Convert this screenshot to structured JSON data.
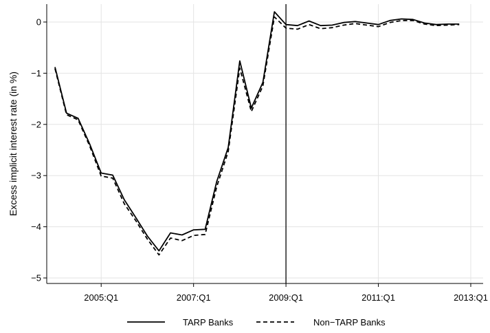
{
  "chart_data": {
    "type": "line",
    "ylabel": "Excess implicit interest rate (in %)",
    "xlabel": "",
    "ylim": [
      -5.2,
      0.35
    ],
    "xlim": [
      "2004:Q1",
      "2013:Q1"
    ],
    "yticks": [
      "0",
      "−1",
      "−2",
      "−3",
      "−4",
      "−5"
    ],
    "xticks": [
      "2005:Q1",
      "2007:Q1",
      "2009:Q1",
      "2011:Q1",
      "2013:Q1"
    ],
    "grid": true,
    "vertical_line": "2009:Q1",
    "legend_position": "bottom",
    "x": [
      "2004:Q1",
      "2004:Q2",
      "2004:Q3",
      "2004:Q4",
      "2005:Q1",
      "2005:Q2",
      "2005:Q3",
      "2005:Q4",
      "2006:Q1",
      "2006:Q2",
      "2006:Q3",
      "2006:Q4",
      "2007:Q1",
      "2007:Q2",
      "2007:Q3",
      "2007:Q4",
      "2008:Q1",
      "2008:Q2",
      "2008:Q3",
      "2008:Q4",
      "2009:Q1",
      "2009:Q2",
      "2009:Q3",
      "2009:Q4",
      "2010:Q1",
      "2010:Q2",
      "2010:Q3",
      "2010:Q4",
      "2011:Q1",
      "2011:Q2",
      "2011:Q3",
      "2011:Q4",
      "2012:Q1",
      "2012:Q2",
      "2012:Q3",
      "2012:Q4"
    ],
    "series": [
      {
        "name": "TARP Banks",
        "style": "solid",
        "color": "#000000",
        "values": [
          -0.88,
          -1.78,
          -1.88,
          -2.38,
          -2.95,
          -2.99,
          -3.47,
          -3.82,
          -4.18,
          -4.47,
          -4.12,
          -4.16,
          -4.06,
          -4.05,
          -3.12,
          -2.45,
          -0.76,
          -1.68,
          -1.18,
          0.2,
          -0.05,
          -0.07,
          0.02,
          -0.07,
          -0.06,
          -0.01,
          0.01,
          -0.02,
          -0.05,
          0.03,
          0.06,
          0.05,
          -0.02,
          -0.05,
          -0.04,
          -0.04
        ]
      },
      {
        "name": "Non−TARP Banks",
        "style": "dashed",
        "color": "#000000",
        "values": [
          -0.91,
          -1.81,
          -1.91,
          -2.42,
          -3.01,
          -3.05,
          -3.55,
          -3.88,
          -4.24,
          -4.55,
          -4.22,
          -4.27,
          -4.17,
          -4.15,
          -3.22,
          -2.53,
          -0.9,
          -1.75,
          -1.25,
          0.1,
          -0.12,
          -0.14,
          -0.05,
          -0.13,
          -0.11,
          -0.06,
          -0.03,
          -0.06,
          -0.09,
          -0.01,
          0.03,
          0.03,
          -0.04,
          -0.07,
          -0.06,
          -0.05
        ]
      }
    ]
  }
}
